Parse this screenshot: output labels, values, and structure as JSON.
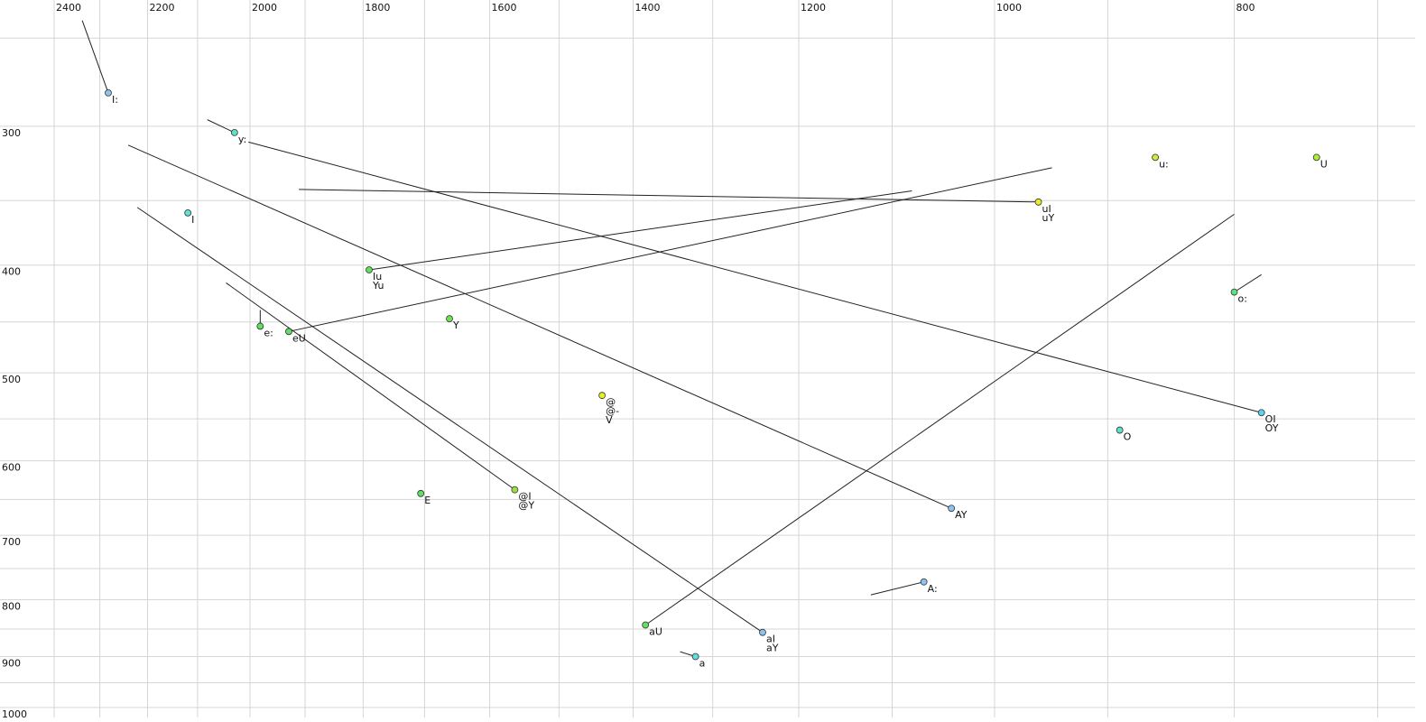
{
  "chart_data": {
    "type": "scatter",
    "xlog": true,
    "ylog": true,
    "grid": true,
    "xlim": [
      2524,
      676
    ],
    "ylim": [
      231,
      1021
    ],
    "xticks": [
      2400,
      2200,
      2000,
      1800,
      1600,
      1400,
      1200,
      1000,
      800
    ],
    "xminor": [
      2300,
      2100,
      1900,
      1700,
      1500,
      1300,
      1100,
      900,
      700
    ],
    "yticks": [
      300,
      400,
      500,
      600,
      700,
      800,
      900,
      1000
    ],
    "yminor": [
      250,
      350,
      450,
      550,
      650,
      750,
      850,
      950
    ],
    "points": [
      {
        "labels": [
          "I:"
        ],
        "x": 2282,
        "y": 280,
        "color": "#8ec3ef"
      },
      {
        "labels": [
          "y:"
        ],
        "x": 2029,
        "y": 304,
        "color": "#5fe0c8"
      },
      {
        "labels": [
          "I"
        ],
        "x": 2119,
        "y": 359,
        "color": "#5fe0d8"
      },
      {
        "labels": [
          "Iu",
          "Yu"
        ],
        "x": 1790,
        "y": 404,
        "color": "#5fe060"
      },
      {
        "labels": [
          "e:"
        ],
        "x": 1981,
        "y": 454,
        "color": "#5fe060"
      },
      {
        "labels": [
          "eU"
        ],
        "x": 1929,
        "y": 459,
        "color": "#5fe060"
      },
      {
        "labels": [
          "Y"
        ],
        "x": 1661,
        "y": 447,
        "color": "#6fe050"
      },
      {
        "labels": [
          "@",
          "@-",
          "V"
        ],
        "x": 1441,
        "y": 524,
        "color": "#e8f020"
      },
      {
        "labels": [
          "E"
        ],
        "x": 1706,
        "y": 642,
        "color": "#5fe060"
      },
      {
        "labels": [
          "@I",
          "@Y"
        ],
        "x": 1563,
        "y": 637,
        "color": "#9be040"
      },
      {
        "labels": [
          "aU"
        ],
        "x": 1384,
        "y": 843,
        "color": "#5fe060"
      },
      {
        "labels": [
          "a"
        ],
        "x": 1321,
        "y": 900,
        "color": "#5fe0e0"
      },
      {
        "labels": [
          "aI",
          "aY"
        ],
        "x": 1241,
        "y": 856,
        "color": "#8ec3ef"
      },
      {
        "labels": [
          "A:"
        ],
        "x": 1068,
        "y": 771,
        "color": "#8ec3ef"
      },
      {
        "labels": [
          "AY"
        ],
        "x": 1041,
        "y": 662,
        "color": "#8ec3ef"
      },
      {
        "labels": [
          "uI",
          "uY"
        ],
        "x": 960,
        "y": 351,
        "color": "#e8f020"
      },
      {
        "labels": [
          "u:"
        ],
        "x": 861,
        "y": 320,
        "color": "#c8f030"
      },
      {
        "labels": [
          "U"
        ],
        "x": 741,
        "y": 320,
        "color": "#a8f030"
      },
      {
        "labels": [
          "o:"
        ],
        "x": 800,
        "y": 423,
        "color": "#5fe080"
      },
      {
        "labels": [
          "OI",
          "OY"
        ],
        "x": 780,
        "y": 543,
        "color": "#5fd0f0"
      },
      {
        "labels": [
          "O"
        ],
        "x": 890,
        "y": 563,
        "color": "#5fe0c8"
      }
    ],
    "trajectories": [
      {
        "x": [
          2282,
          2338
        ],
        "y": [
          280,
          241
        ]
      },
      {
        "x": [
          2029,
          2081
        ],
        "y": [
          304,
          296
        ]
      },
      {
        "x": [
          780,
          2003
        ],
        "y": [
          543,
          310
        ]
      },
      {
        "x": [
          1041,
          2240
        ],
        "y": [
          662,
          312
        ]
      },
      {
        "x": [
          1241,
          2221
        ],
        "y": [
          856,
          355
        ]
      },
      {
        "x": [
          1563,
          2045
        ],
        "y": [
          637,
          415
        ]
      },
      {
        "x": [
          960,
          1911
        ],
        "y": [
          351,
          342
        ]
      },
      {
        "x": [
          1790,
          1080
        ],
        "y": [
          404,
          343
        ]
      },
      {
        "x": [
          1929,
          948
        ],
        "y": [
          459,
          327
        ]
      },
      {
        "x": [
          1384,
          800
        ],
        "y": [
          843,
          360
        ]
      },
      {
        "x": [
          800,
          780
        ],
        "y": [
          423,
          408
        ]
      },
      {
        "x": [
          1068,
          1122
        ],
        "y": [
          771,
          792
        ]
      },
      {
        "x": [
          1321,
          1340
        ],
        "y": [
          900,
          891
        ]
      },
      {
        "x": [
          1981,
          1981
        ],
        "y": [
          454,
          439
        ]
      }
    ]
  }
}
